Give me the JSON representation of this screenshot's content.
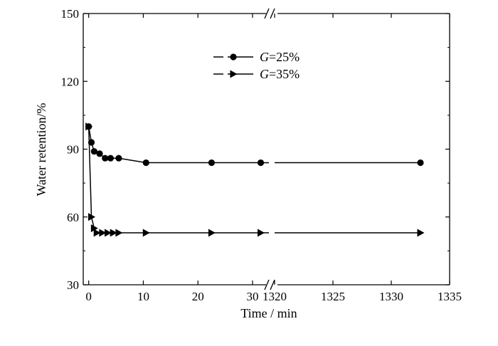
{
  "chart_data": {
    "type": "line",
    "title": "",
    "xlabel": "Time / min",
    "ylabel": "Water retention/%",
    "ylim": [
      30,
      150
    ],
    "yticks": [
      "30",
      "60",
      "90",
      "120",
      "150"
    ],
    "x_segments": [
      {
        "range": [
          -1,
          33
        ],
        "ticks": [
          0,
          10,
          20,
          30
        ],
        "tick_labels": [
          "0",
          "10",
          "20",
          "30"
        ]
      },
      {
        "range": [
          1320,
          1335
        ],
        "ticks": [
          1320,
          1325,
          1330,
          1335
        ],
        "tick_labels": [
          "1320",
          "1325",
          "1330",
          "1335"
        ]
      }
    ],
    "axis_break": true,
    "grid": false,
    "legend": "top-center",
    "series": [
      {
        "name_prefix": "G",
        "name_suffix": "=25%",
        "marker": "circle",
        "x": [
          0,
          0.5,
          1,
          2,
          3,
          4,
          5.5,
          10.5,
          22.5,
          31.5,
          1332.5
        ],
        "y": [
          100,
          93,
          89,
          88,
          86,
          86,
          86,
          84,
          84,
          84,
          84
        ]
      },
      {
        "name_prefix": "G",
        "name_suffix": "=35%",
        "marker": "triangle-right",
        "x": [
          0,
          0.5,
          1,
          1.5,
          2.5,
          3.5,
          4.5,
          5.5,
          10.5,
          22.5,
          31.5,
          1332.5
        ],
        "y": [
          100,
          60,
          55,
          53,
          53,
          53,
          53,
          53,
          53,
          53,
          53,
          53
        ]
      }
    ]
  }
}
